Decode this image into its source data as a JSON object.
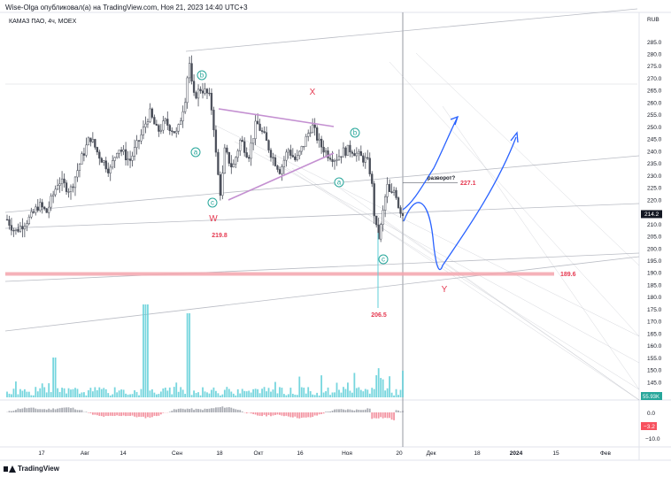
{
  "header": {
    "publisher": "Wise-Olga опубликовал(а) на TradingView.com, Ноя 21, 2023 14:40 UTC+3"
  },
  "legend": {
    "symbol": "КАМАЗ ПАО, 4ч, MOEX"
  },
  "footer": {
    "brand": "TradingView"
  },
  "colors": {
    "candles": "#4a4e59",
    "volume": "#5fcfd8",
    "wave": "#26a69a",
    "red_label": "#e53950",
    "triangle": "#c490d1",
    "zone": "#f3a4ad",
    "forecast": "#2962ff",
    "channel": "#b2b5be",
    "cursor": "#9598a1",
    "osc_pos": "#9598a1",
    "osc_neg": "#f07c8c"
  },
  "chart_data": {
    "type": "candlestick",
    "currency": "RUB",
    "ylim": [
      139,
      291
    ],
    "y_ticks": [
      145,
      150,
      155,
      160,
      165,
      170,
      175,
      180,
      185,
      190,
      195,
      200,
      205,
      210,
      215,
      220,
      225,
      230,
      235,
      240,
      245,
      250,
      255,
      260,
      265,
      270,
      275,
      280,
      285
    ],
    "x_ticks": [
      "17",
      "Авг",
      "14",
      "Сен",
      "18",
      "Окт",
      "16",
      "Ноя",
      "20",
      "Дек",
      "18",
      "2024",
      "15",
      "Фев"
    ],
    "price_path": [
      {
        "x": 0,
        "y": 212
      },
      {
        "x": 2,
        "y": 207
      },
      {
        "x": 4,
        "y": 210
      },
      {
        "x": 6,
        "y": 213
      },
      {
        "x": 8,
        "y": 218
      },
      {
        "x": 10,
        "y": 215
      },
      {
        "x": 13,
        "y": 228
      },
      {
        "x": 16,
        "y": 224
      },
      {
        "x": 19,
        "y": 238
      },
      {
        "x": 21,
        "y": 246
      },
      {
        "x": 23,
        "y": 239
      },
      {
        "x": 26,
        "y": 232
      },
      {
        "x": 28,
        "y": 242
      },
      {
        "x": 31,
        "y": 236
      },
      {
        "x": 34,
        "y": 247
      },
      {
        "x": 36,
        "y": 256
      },
      {
        "x": 38,
        "y": 248
      },
      {
        "x": 40,
        "y": 252
      },
      {
        "x": 43,
        "y": 247
      },
      {
        "x": 45,
        "y": 262
      },
      {
        "x": 46,
        "y": 278
      },
      {
        "x": 47,
        "y": 262
      },
      {
        "x": 49,
        "y": 266
      },
      {
        "x": 51,
        "y": 263
      },
      {
        "x": 52,
        "y": 255
      },
      {
        "x": 53,
        "y": 234
      },
      {
        "x": 54,
        "y": 222
      },
      {
        "x": 55,
        "y": 240
      },
      {
        "x": 57,
        "y": 233
      },
      {
        "x": 59,
        "y": 245
      },
      {
        "x": 61,
        "y": 238
      },
      {
        "x": 63,
        "y": 252
      },
      {
        "x": 65,
        "y": 246
      },
      {
        "x": 67,
        "y": 238
      },
      {
        "x": 69,
        "y": 232
      },
      {
        "x": 71,
        "y": 241
      },
      {
        "x": 73,
        "y": 236
      },
      {
        "x": 75,
        "y": 243
      },
      {
        "x": 77,
        "y": 251
      },
      {
        "x": 79,
        "y": 243
      },
      {
        "x": 81,
        "y": 239
      },
      {
        "x": 83,
        "y": 237
      },
      {
        "x": 85,
        "y": 240
      },
      {
        "x": 87,
        "y": 241
      },
      {
        "x": 89,
        "y": 238
      },
      {
        "x": 91,
        "y": 236
      },
      {
        "x": 92,
        "y": 230
      },
      {
        "x": 93,
        "y": 210
      },
      {
        "x": 94,
        "y": 204
      },
      {
        "x": 95,
        "y": 215
      },
      {
        "x": 96,
        "y": 226
      },
      {
        "x": 97,
        "y": 221
      },
      {
        "x": 98,
        "y": 225
      },
      {
        "x": 99,
        "y": 217
      },
      {
        "x": 100,
        "y": 214.2
      }
    ],
    "last_price": "214.2",
    "oscillator": {
      "ticks": [
        "0.0",
        "−10.0"
      ],
      "last": "−3.2",
      "volume_last": "55.93K"
    },
    "annotations": {
      "wave_a1": "a",
      "wave_b1": "b",
      "wave_c1": "c",
      "wave_a2": "a",
      "wave_b2": "b",
      "wave_c2": "c",
      "W": "W",
      "X": "X",
      "Y": "Y",
      "low_w": "219.8",
      "low_c": "206.5",
      "reversal": "разворот?",
      "level_top": "227.1",
      "level_zone": "189.6"
    }
  }
}
